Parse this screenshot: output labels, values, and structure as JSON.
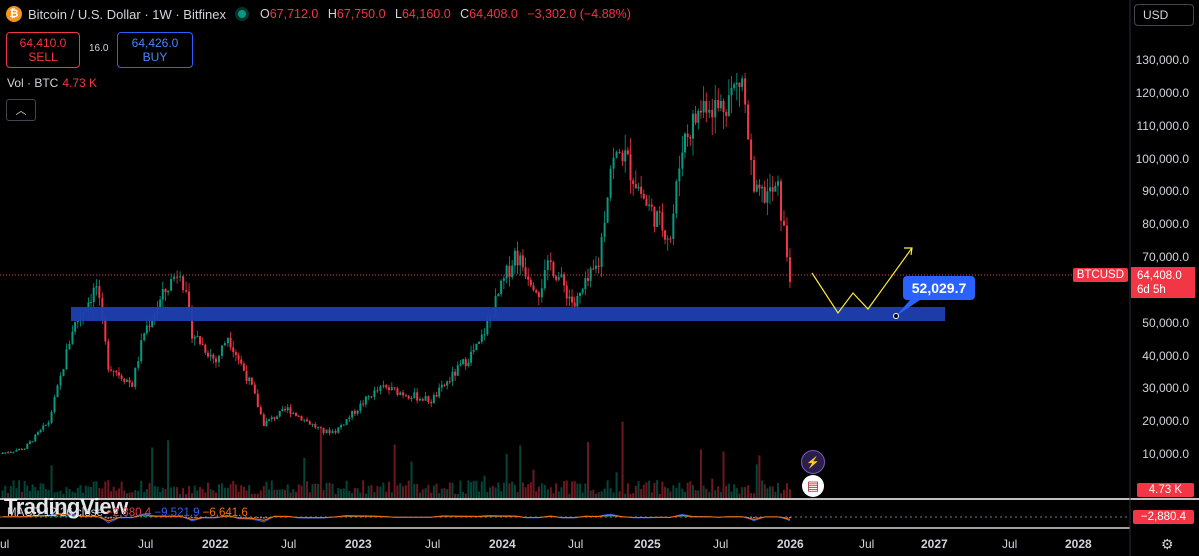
{
  "header": {
    "symbol_title": "Bitcoin / U.S. Dollar · 1W · Bitfinex",
    "icon": "bitcoin-icon",
    "ohlc": {
      "o_key": "O",
      "o": "67,712.0",
      "h_key": "H",
      "h": "67,750.0",
      "l_key": "L",
      "l": "64,160.0",
      "c_key": "C",
      "c": "64,408.0",
      "change": "−3,302.0 (−4.88%)"
    }
  },
  "trade": {
    "sell_price": "64,410.0",
    "sell_label": "SELL",
    "spread": "16.0",
    "buy_price": "64,426.0",
    "buy_label": "BUY"
  },
  "volume_legend": {
    "label": "Vol · BTC",
    "value": "4.73 K"
  },
  "currency_selector": "USD",
  "y_axis": [
    "130,000.0",
    "120,000.0",
    "110,000.0",
    "100,000.0",
    "90,000.0",
    "80,000.0",
    "70,000.0",
    "50,000.0",
    "40,000.0",
    "30,000.0",
    "20,000.0",
    "10,000.0"
  ],
  "x_axis": [
    {
      "label": "ul",
      "year": false
    },
    {
      "label": "2021",
      "year": true
    },
    {
      "label": "Jul",
      "year": false
    },
    {
      "label": "2022",
      "year": true
    },
    {
      "label": "Jul",
      "year": false
    },
    {
      "label": "2023",
      "year": true
    },
    {
      "label": "Jul",
      "year": false
    },
    {
      "label": "2024",
      "year": true
    },
    {
      "label": "Jul",
      "year": false
    },
    {
      "label": "2025",
      "year": true
    },
    {
      "label": "Jul",
      "year": false
    },
    {
      "label": "2026",
      "year": true
    },
    {
      "label": "Jul",
      "year": false
    },
    {
      "label": "2027",
      "year": true
    },
    {
      "label": "Jul",
      "year": false
    },
    {
      "label": "2028",
      "year": true
    }
  ],
  "price_tags": {
    "symbol": "BTCUSD",
    "last": "64,408.0",
    "countdown": "6d 5h",
    "volume": "4.73 K",
    "macd": "−2,880.4"
  },
  "annotation": {
    "target_price": "52,029.7"
  },
  "macd_legend": {
    "label": "MACD 12 26 close",
    "hist": "−2,880.4",
    "macd": "−9,521.9",
    "signal": "−6,641.6"
  },
  "watermark": "TradingView",
  "colors": {
    "up": "#089981",
    "down": "#f23645",
    "zone": "#1e3fb0",
    "path": "#ffeb3b",
    "accent": "#2962ff"
  },
  "chart_data": {
    "type": "line",
    "title": "Bitcoin / U.S. Dollar · 1W · Bitfinex",
    "ylim": [
      0,
      135000
    ],
    "support_zone": [
      50500,
      54500
    ],
    "last_price": 64408,
    "series": [
      {
        "values": [
          [
            "2020-07",
            9200
          ],
          [
            "2020-10",
            11500
          ],
          [
            "2020-12",
            19500
          ],
          [
            "2021-01",
            33000
          ],
          [
            "2021-02",
            48000
          ],
          [
            "2021-04",
            61000
          ],
          [
            "2021-05",
            37000
          ],
          [
            "2021-07",
            31000
          ],
          [
            "2021-08",
            47000
          ],
          [
            "2021-10",
            61000
          ],
          [
            "2021-11",
            67000
          ],
          [
            "2021-12",
            47000
          ],
          [
            "2022-02",
            38000
          ],
          [
            "2022-03",
            46000
          ],
          [
            "2022-05",
            30000
          ],
          [
            "2022-06",
            19000
          ],
          [
            "2022-08",
            23500
          ],
          [
            "2022-11",
            16500
          ],
          [
            "2022-12",
            16800
          ],
          [
            "2023-03",
            28000
          ],
          [
            "2023-04",
            30000
          ],
          [
            "2023-08",
            26000
          ],
          [
            "2023-10",
            34500
          ],
          [
            "2023-12",
            43000
          ],
          [
            "2024-03",
            71000
          ],
          [
            "2024-05",
            60000
          ],
          [
            "2024-06",
            68000
          ],
          [
            "2024-08",
            55000
          ],
          [
            "2024-10",
            68000
          ],
          [
            "2024-11",
            98000
          ],
          [
            "2024-12",
            102000
          ],
          [
            "2025-02",
            86000
          ],
          [
            "2025-04",
            76000
          ],
          [
            "2025-05",
            105000
          ],
          [
            "2025-07",
            118000
          ],
          [
            "2025-08",
            115000
          ],
          [
            "2025-10",
            124000
          ],
          [
            "2025-11",
            88000
          ],
          [
            "2026-01",
            90000
          ],
          [
            "2026-02",
            64408
          ]
        ]
      }
    ]
  }
}
